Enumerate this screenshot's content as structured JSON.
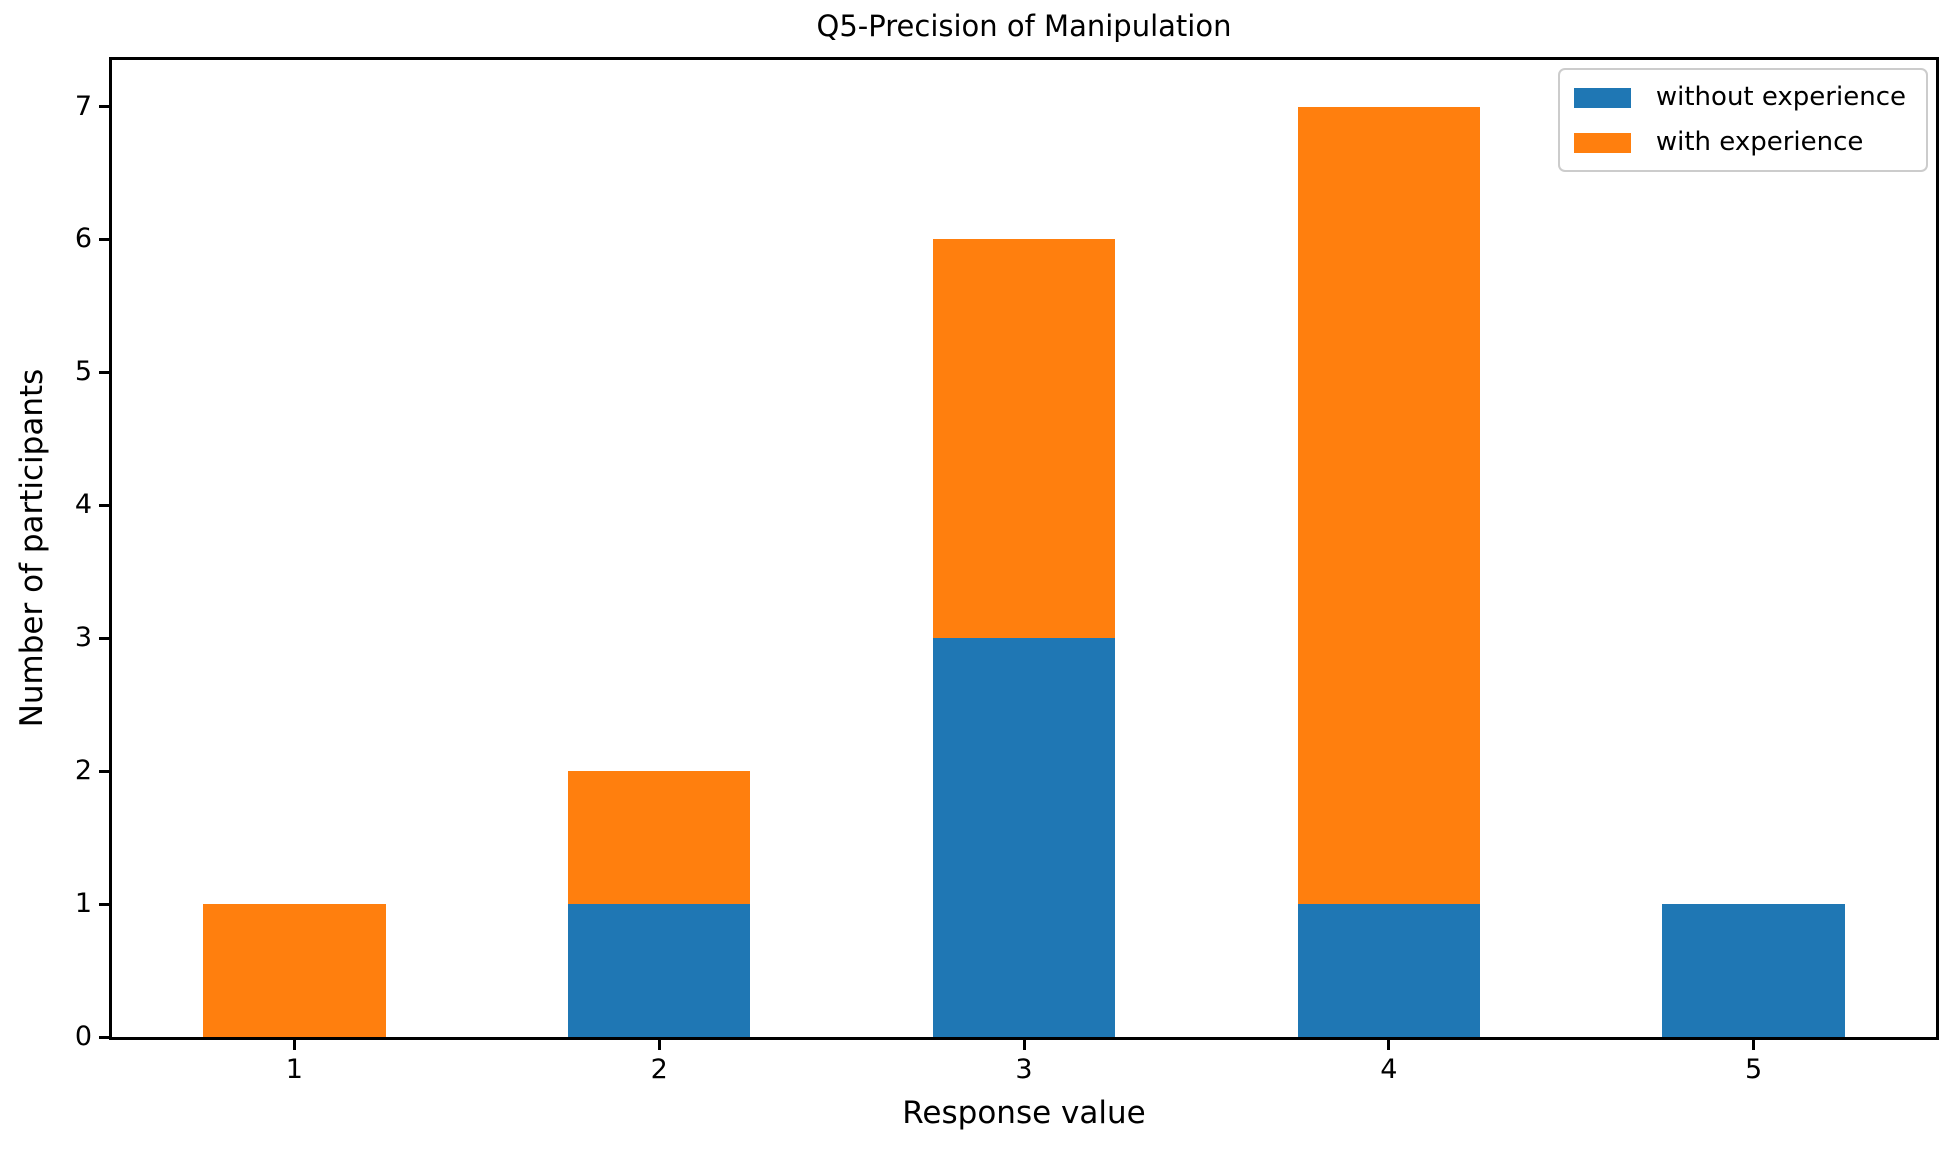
{
  "chart_data": {
    "type": "bar",
    "stacked": true,
    "title": "Q5-Precision of Manipulation",
    "xlabel": "Response value",
    "ylabel": "Number of participants",
    "categories": [
      "1",
      "2",
      "3",
      "4",
      "5"
    ],
    "series": [
      {
        "name": "without experience",
        "color": "#1f77b4",
        "values": [
          0,
          1,
          3,
          1,
          1
        ]
      },
      {
        "name": "with experience",
        "color": "#ff7f0e",
        "values": [
          1,
          1,
          3,
          6,
          0
        ]
      }
    ],
    "stack_totals": [
      1,
      2,
      6,
      7,
      1
    ],
    "ylim": [
      0,
      7.35
    ],
    "yticks": [
      0,
      1,
      2,
      3,
      4,
      5,
      6,
      7
    ],
    "bar_width_fraction": 0.5,
    "legend_position": "upper right",
    "grid": false,
    "colors": {
      "background": "#ffffff",
      "spine": "#000000",
      "legend_border": "#cccccc",
      "text": "#000000"
    }
  }
}
